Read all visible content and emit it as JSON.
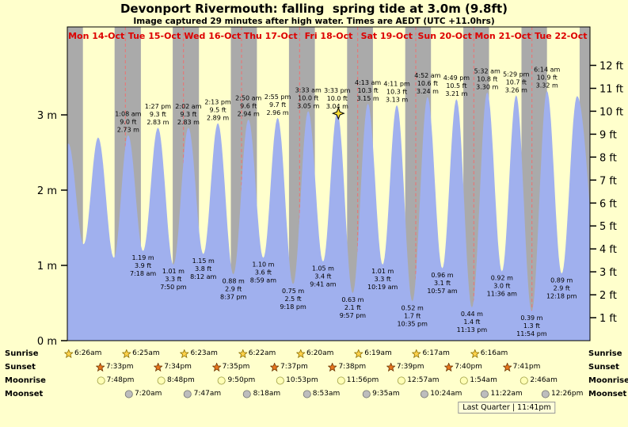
{
  "title": "Devonport Rivermouth: falling  spring tide at 3.0m (9.8ft)",
  "subtitle": "Image captured 29 minutes after high water. Times are AEDT (UTC +11.0hrs)",
  "colors": {
    "bg": "#FFFFCC",
    "night": "#AAAAAA",
    "tide": "#A0B0EE",
    "day_label": "#DD0000",
    "grid_dash": "#EE7070",
    "axis": "#000000",
    "marker": "#FFDF33",
    "sunrise_icon": "#FFD24A",
    "sunset_icon": "#E8761E",
    "moonrise_icon": "#FFFFB4",
    "moonset_icon": "#BDBDBD"
  },
  "chart_data": {
    "type": "area",
    "title": "Devonport Rivermouth: falling spring tide at 3.0m (9.8ft)",
    "x_range_days": 9,
    "ylim_m": [
      0,
      3.93
    ],
    "day_labels": [
      "Mon 14-Oct",
      "Tue 15-Oct",
      "Wed 16-Oct",
      "Thu 17-Oct",
      "Fri 18-Oct",
      "Sat 19-Oct",
      "Sun 20-Oct",
      "Mon 21-Oct",
      "Tue 22-Oct"
    ],
    "y_axis_left": {
      "unit": "m",
      "labels": [
        "3 m",
        "2 m",
        "1 m",
        "0 m"
      ],
      "values": [
        3,
        2,
        1,
        0
      ]
    },
    "y_axis_right": {
      "unit": "ft",
      "labels": [
        "12 ft",
        "11 ft",
        "10 ft",
        "9 ft",
        "8 ft",
        "7 ft",
        "6 ft",
        "5 ft",
        "4 ft",
        "3 ft",
        "2 ft",
        "1 ft"
      ],
      "values": [
        12,
        11,
        10,
        9,
        8,
        7,
        6,
        5,
        4,
        3,
        2,
        1
      ]
    },
    "night_bands": [
      [
        0,
        0.2681
      ],
      [
        0.8146,
        1.2674
      ],
      [
        1.8153,
        2.266
      ],
      [
        2.816,
        3.2653
      ],
      [
        3.8174,
        4.2639
      ],
      [
        4.8181,
        5.2632
      ],
      [
        5.8188,
        6.2618
      ],
      [
        6.8194,
        7.2611
      ],
      [
        7.8201,
        8.2597
      ],
      [
        8.8208,
        9
      ]
    ],
    "now_marker": {
      "t": 4.668,
      "h_m": 3.02
    },
    "tides": [
      {
        "type": "L",
        "t": -0.23,
        "h_m": 1.3,
        "label": false
      },
      {
        "type": "H",
        "t": 0.017,
        "h_m": 2.62,
        "label": false
      },
      {
        "type": "L",
        "t": 0.281,
        "h_m": 1.28,
        "label": false
      },
      {
        "type": "H",
        "t": 0.531,
        "h_m": 2.7,
        "label": false
      },
      {
        "type": "L",
        "t": 0.802,
        "h_m": 1.1,
        "label": false
      },
      {
        "type": "H",
        "t": 1.0472,
        "h_m": 2.73,
        "m_label": "2.73 m",
        "ft_label": "9.0 ft",
        "time": "1:08 am",
        "label": true
      },
      {
        "type": "L",
        "t": 1.3042,
        "h_m": 1.19,
        "m_label": "1.19 m",
        "ft_label": "3.9 ft",
        "time": "7:18 am",
        "label": true
      },
      {
        "type": "H",
        "t": 1.5604,
        "h_m": 2.83,
        "m_label": "2.83 m",
        "ft_label": "9.3 ft",
        "time": "1:27 pm",
        "label": true
      },
      {
        "type": "L",
        "t": 1.8264,
        "h_m": 1.01,
        "m_label": "1.01 m",
        "ft_label": "3.3 ft",
        "time": "7:50 pm",
        "label": true
      },
      {
        "type": "H",
        "t": 2.0847,
        "h_m": 2.83,
        "m_label": "2.83 m",
        "ft_label": "9.3 ft",
        "time": "2:02 am",
        "label": true
      },
      {
        "type": "L",
        "t": 2.3417,
        "h_m": 1.15,
        "m_label": "1.15 m",
        "ft_label": "3.8 ft",
        "time": "8:12 am",
        "label": true
      },
      {
        "type": "H",
        "t": 2.5924,
        "h_m": 2.89,
        "m_label": "2.89 m",
        "ft_label": "9.5 ft",
        "time": "2:13 pm",
        "label": true
      },
      {
        "type": "L",
        "t": 2.859,
        "h_m": 0.88,
        "m_label": "0.88 m",
        "ft_label": "2.9 ft",
        "time": "8:37 pm",
        "label": true
      },
      {
        "type": "H",
        "t": 3.1181,
        "h_m": 2.94,
        "m_label": "2.94 m",
        "ft_label": "9.6 ft",
        "time": "2:50 am",
        "label": true
      },
      {
        "type": "L",
        "t": 3.3743,
        "h_m": 1.1,
        "m_label": "1.10 m",
        "ft_label": "3.6 ft",
        "time": "8:59 am",
        "label": true
      },
      {
        "type": "H",
        "t": 3.6215,
        "h_m": 2.96,
        "m_label": "2.96 m",
        "ft_label": "9.7 ft",
        "time": "2:55 pm",
        "label": true
      },
      {
        "type": "L",
        "t": 3.8875,
        "h_m": 0.75,
        "m_label": "0.75 m",
        "ft_label": "2.5 ft",
        "time": "9:18 pm",
        "label": true
      },
      {
        "type": "H",
        "t": 4.1479,
        "h_m": 3.05,
        "m_label": "3.05 m",
        "ft_label": "10.0 ft",
        "time": "3:33 am",
        "label": true
      },
      {
        "type": "L",
        "t": 4.4035,
        "h_m": 1.05,
        "m_label": "1.05 m",
        "ft_label": "3.4 ft",
        "time": "9:41 am",
        "label": true
      },
      {
        "type": "H",
        "t": 4.6479,
        "h_m": 3.04,
        "m_label": "3.04 m",
        "ft_label": "10.0 ft",
        "time": "3:33 pm",
        "label": true
      },
      {
        "type": "L",
        "t": 4.9146,
        "h_m": 0.63,
        "m_label": "0.63 m",
        "ft_label": "2.1 ft",
        "time": "9:57 pm",
        "label": true
      },
      {
        "type": "H",
        "t": 5.1757,
        "h_m": 3.15,
        "m_label": "3.15 m",
        "ft_label": "10.3 ft",
        "time": "4:13 am",
        "label": true
      },
      {
        "type": "L",
        "t": 5.4299,
        "h_m": 1.01,
        "m_label": "1.01 m",
        "ft_label": "3.3 ft",
        "time": "10:19 am",
        "label": true
      },
      {
        "type": "H",
        "t": 5.6743,
        "h_m": 3.13,
        "m_label": "3.13 m",
        "ft_label": "10.3 ft",
        "time": "4:11 pm",
        "label": true
      },
      {
        "type": "L",
        "t": 5.941,
        "h_m": 0.52,
        "m_label": "0.52 m",
        "ft_label": "1.7 ft",
        "time": "10:35 pm",
        "label": true
      },
      {
        "type": "H",
        "t": 6.2028,
        "h_m": 3.24,
        "m_label": "3.24 m",
        "ft_label": "10.6 ft",
        "time": "4:52 am",
        "label": true
      },
      {
        "type": "L",
        "t": 6.4563,
        "h_m": 0.96,
        "m_label": "0.96 m",
        "ft_label": "3.1 ft",
        "time": "10:57 am",
        "label": true
      },
      {
        "type": "H",
        "t": 6.7007,
        "h_m": 3.21,
        "m_label": "3.21 m",
        "ft_label": "10.5 ft",
        "time": "4:49 pm",
        "label": true
      },
      {
        "type": "L",
        "t": 6.9674,
        "h_m": 0.44,
        "m_label": "0.44 m",
        "ft_label": "1.4 ft",
        "time": "11:13 pm",
        "label": true
      },
      {
        "type": "H",
        "t": 7.2306,
        "h_m": 3.3,
        "m_label": "3.30 m",
        "ft_label": "10.8 ft",
        "time": "5:32 am",
        "label": true
      },
      {
        "type": "L",
        "t": 7.4833,
        "h_m": 0.92,
        "m_label": "0.92 m",
        "ft_label": "3.0 ft",
        "time": "11:36 am",
        "label": true
      },
      {
        "type": "H",
        "t": 7.7285,
        "h_m": 3.26,
        "m_label": "3.26 m",
        "ft_label": "10.7 ft",
        "time": "5:29 pm",
        "label": true
      },
      {
        "type": "L",
        "t": 7.9958,
        "h_m": 0.39,
        "m_label": "0.39 m",
        "ft_label": "1.3 ft",
        "time": "11:54 pm",
        "label": true
      },
      {
        "type": "H",
        "t": 8.2597,
        "h_m": 3.32,
        "m_label": "3.32 m",
        "ft_label": "10.9 ft",
        "time": "6:14 am",
        "label": true
      },
      {
        "type": "L",
        "t": 8.5125,
        "h_m": 0.89,
        "m_label": "0.89 m",
        "ft_label": "2.9 ft",
        "time": "12:18 pm",
        "label": true
      },
      {
        "type": "H",
        "t": 8.7778,
        "h_m": 3.25,
        "label": false
      },
      {
        "type": "L",
        "t": 9.2,
        "h_m": 0.45,
        "label": false
      }
    ]
  },
  "astro": {
    "rows": [
      {
        "name": "Sunrise",
        "icon": "sunrise-star-icon",
        "events": [
          {
            "day": 0,
            "time": "6:26am",
            "t": 0.2681
          },
          {
            "day": 1,
            "time": "6:25am",
            "t": 1.2674
          },
          {
            "day": 2,
            "time": "6:23am",
            "t": 2.266
          },
          {
            "day": 3,
            "time": "6:22am",
            "t": 3.2653
          },
          {
            "day": 4,
            "time": "6:20am",
            "t": 4.2639
          },
          {
            "day": 5,
            "time": "6:19am",
            "t": 5.2632
          },
          {
            "day": 6,
            "time": "6:17am",
            "t": 6.2618
          },
          {
            "day": 7,
            "time": "6:16am",
            "t": 7.2611
          }
        ]
      },
      {
        "name": "Sunset",
        "icon": "sunset-star-icon",
        "events": [
          {
            "day": 0,
            "time": "7:33pm",
            "t": 0.8146
          },
          {
            "day": 1,
            "time": "7:34pm",
            "t": 1.8153
          },
          {
            "day": 2,
            "time": "7:35pm",
            "t": 2.816
          },
          {
            "day": 3,
            "time": "7:37pm",
            "t": 3.8174
          },
          {
            "day": 4,
            "time": "7:38pm",
            "t": 4.8181
          },
          {
            "day": 5,
            "time": "7:39pm",
            "t": 5.8188
          },
          {
            "day": 6,
            "time": "7:40pm",
            "t": 6.8194
          },
          {
            "day": 7,
            "time": "7:41pm",
            "t": 7.8201
          }
        ]
      },
      {
        "name": "Moonrise",
        "icon": "moonrise-icon",
        "events": [
          {
            "day": 0,
            "time": "7:48pm",
            "t": 0.825
          },
          {
            "day": 1,
            "time": "8:48pm",
            "t": 1.8667
          },
          {
            "day": 2,
            "time": "9:50pm",
            "t": 2.9097
          },
          {
            "day": 3,
            "time": "10:53pm",
            "t": 3.9535
          },
          {
            "day": 4,
            "time": "11:56pm",
            "t": 4.9972
          },
          {
            "day": 6,
            "time": "12:57am",
            "t": 6.0396
          },
          {
            "day": 7,
            "time": "1:54am",
            "t": 7.0792
          },
          {
            "day": 8,
            "time": "2:46am",
            "t": 8.1153
          }
        ]
      },
      {
        "name": "Moonset",
        "icon": "moonset-icon",
        "events": [
          {
            "day": 1,
            "time": "7:20am",
            "t": 1.3056
          },
          {
            "day": 2,
            "time": "7:47am",
            "t": 2.3243
          },
          {
            "day": 3,
            "time": "8:18am",
            "t": 3.3458
          },
          {
            "day": 4,
            "time": "8:53am",
            "t": 4.3701
          },
          {
            "day": 5,
            "time": "9:35am",
            "t": 5.3993
          },
          {
            "day": 6,
            "time": "10:24am",
            "t": 6.4333
          },
          {
            "day": 7,
            "time": "11:22am",
            "t": 7.4736
          },
          {
            "day": 8,
            "time": "12:26pm",
            "t": 8.5181
          }
        ]
      }
    ],
    "moon_phase": "Last Quarter | 11:41pm"
  }
}
